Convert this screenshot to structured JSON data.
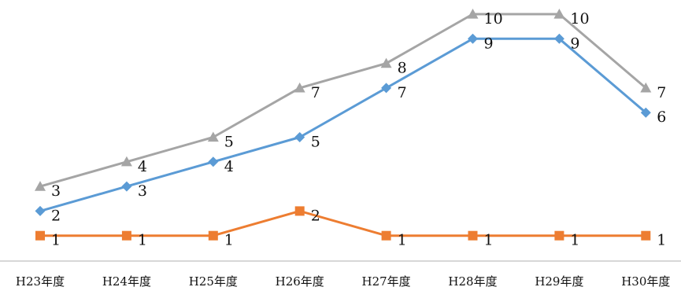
{
  "chart_data": {
    "type": "line",
    "categories": [
      "H23年度",
      "H24年度",
      "H25年度",
      "H26年度",
      "H27年度",
      "H28年度",
      "H29年度",
      "H30年度"
    ],
    "series": [
      {
        "values": [
          2,
          3,
          4,
          5,
          7,
          9,
          9,
          6
        ],
        "color": "#5b9bd5",
        "marker": "diamond"
      },
      {
        "values": [
          1,
          1,
          1,
          2,
          1,
          1,
          1,
          1
        ],
        "color": "#ed7d31",
        "marker": "square"
      },
      {
        "values": [
          3,
          4,
          5,
          7,
          8,
          10,
          10,
          7
        ],
        "color": "#a5a5a5",
        "marker": "triangle"
      }
    ],
    "ylim": [
      0,
      10
    ],
    "grid": false,
    "legend": "none",
    "data_labels": true
  }
}
